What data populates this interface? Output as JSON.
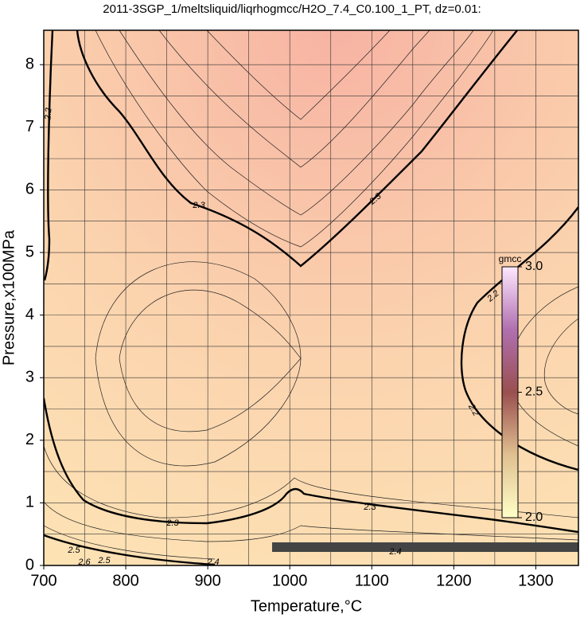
{
  "chart_data": {
    "type": "contour",
    "title": "2011-3SGP_1/meltsliquid/liqrhogmcc/H2O_7.4_C0.100_1_PT, dz=0.01:",
    "xlabel": "Temperature,°C",
    "ylabel": "Pressure,x100MPa",
    "xlim": [
      700,
      1352
    ],
    "ylim": [
      0,
      8.55
    ],
    "xticks": [
      700,
      800,
      900,
      1000,
      1100,
      1200,
      1300
    ],
    "yticks": [
      0,
      1,
      2,
      3,
      4,
      5,
      6,
      7,
      8
    ],
    "xgrid": [
      750,
      850,
      950,
      1050,
      1150,
      1250
    ],
    "ygrid": [
      0.5,
      1.5,
      2.5,
      3.5,
      4.5,
      5.5,
      6.5,
      7.5
    ],
    "grid": true,
    "contour_levels": [
      2.2,
      2.3,
      2.4,
      2.5,
      2.6
    ],
    "colorbar": {
      "label": "gmcc",
      "lim": [
        2.0,
        3.0
      ],
      "ticks": [
        {
          "value": 2.0,
          "label": "2.0"
        },
        2.5,
        {
          "value": 3.0,
          "label": "3.0"
        }
      ]
    }
  }
}
